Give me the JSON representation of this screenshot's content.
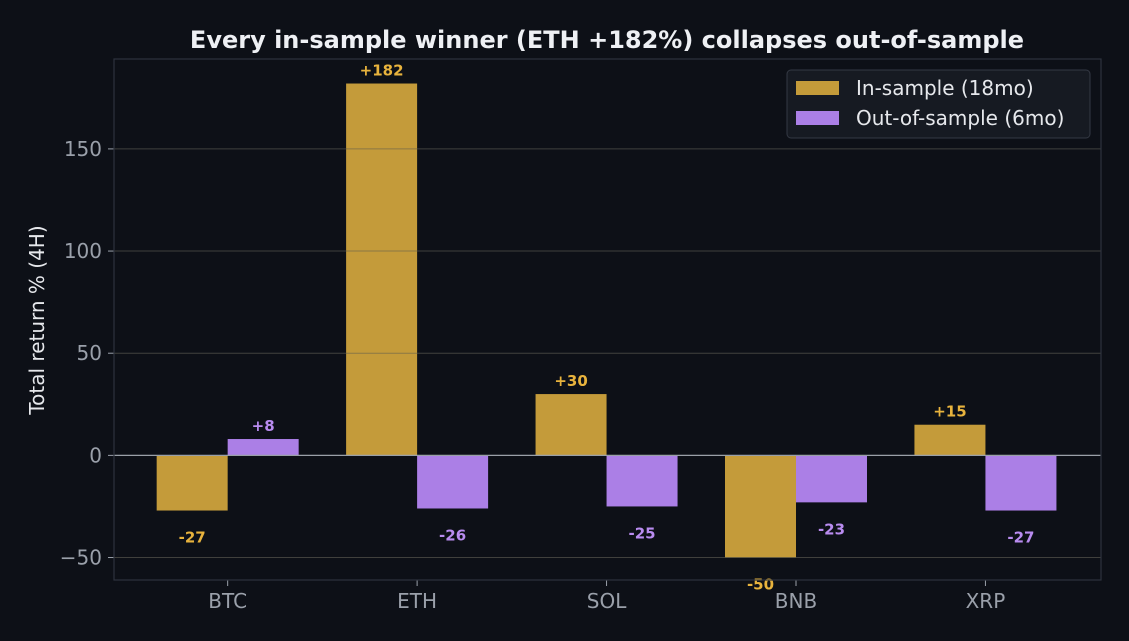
{
  "chart_data": {
    "type": "bar",
    "title": "Every in-sample winner (ETH +182%) collapses out-of-sample",
    "xlabel": "",
    "ylabel": "Total return % (4H)",
    "categories": [
      "BTC",
      "ETH",
      "SOL",
      "BNB",
      "XRP"
    ],
    "series": [
      {
        "name": "In-sample (18mo)",
        "values": [
          -27,
          182,
          30,
          -50,
          15
        ],
        "labels": [
          "-27",
          "+182",
          "+30",
          "-50",
          "+15"
        ]
      },
      {
        "name": "Out-of-sample (6mo)",
        "values": [
          8,
          -26,
          -25,
          -23,
          -27
        ],
        "labels": [
          "+8",
          "-26",
          "-25",
          "-23",
          "-27"
        ]
      }
    ],
    "ylim": [
      -61,
      194
    ],
    "yticks": [
      -50,
      0,
      50,
      100,
      150
    ],
    "ytick_labels": [
      "−50",
      "0",
      "50",
      "100",
      "150"
    ],
    "grid": true,
    "legend_position": "top-right"
  },
  "colors": {
    "background": "#0d1017",
    "plot_border": "#2e333d",
    "grid": "#1f232b",
    "zero_line": "#9aa0a8",
    "in_sample": "#c49b3a",
    "out_sample": "#ab7fe6",
    "in_label": "#e8b33d",
    "out_label": "#b98cf0",
    "title": "#eef0f4",
    "axis_text": "#9aa0aa",
    "legend_bg": "#161a22",
    "legend_border": "#343944",
    "legend_text": "#e6e8ec"
  }
}
